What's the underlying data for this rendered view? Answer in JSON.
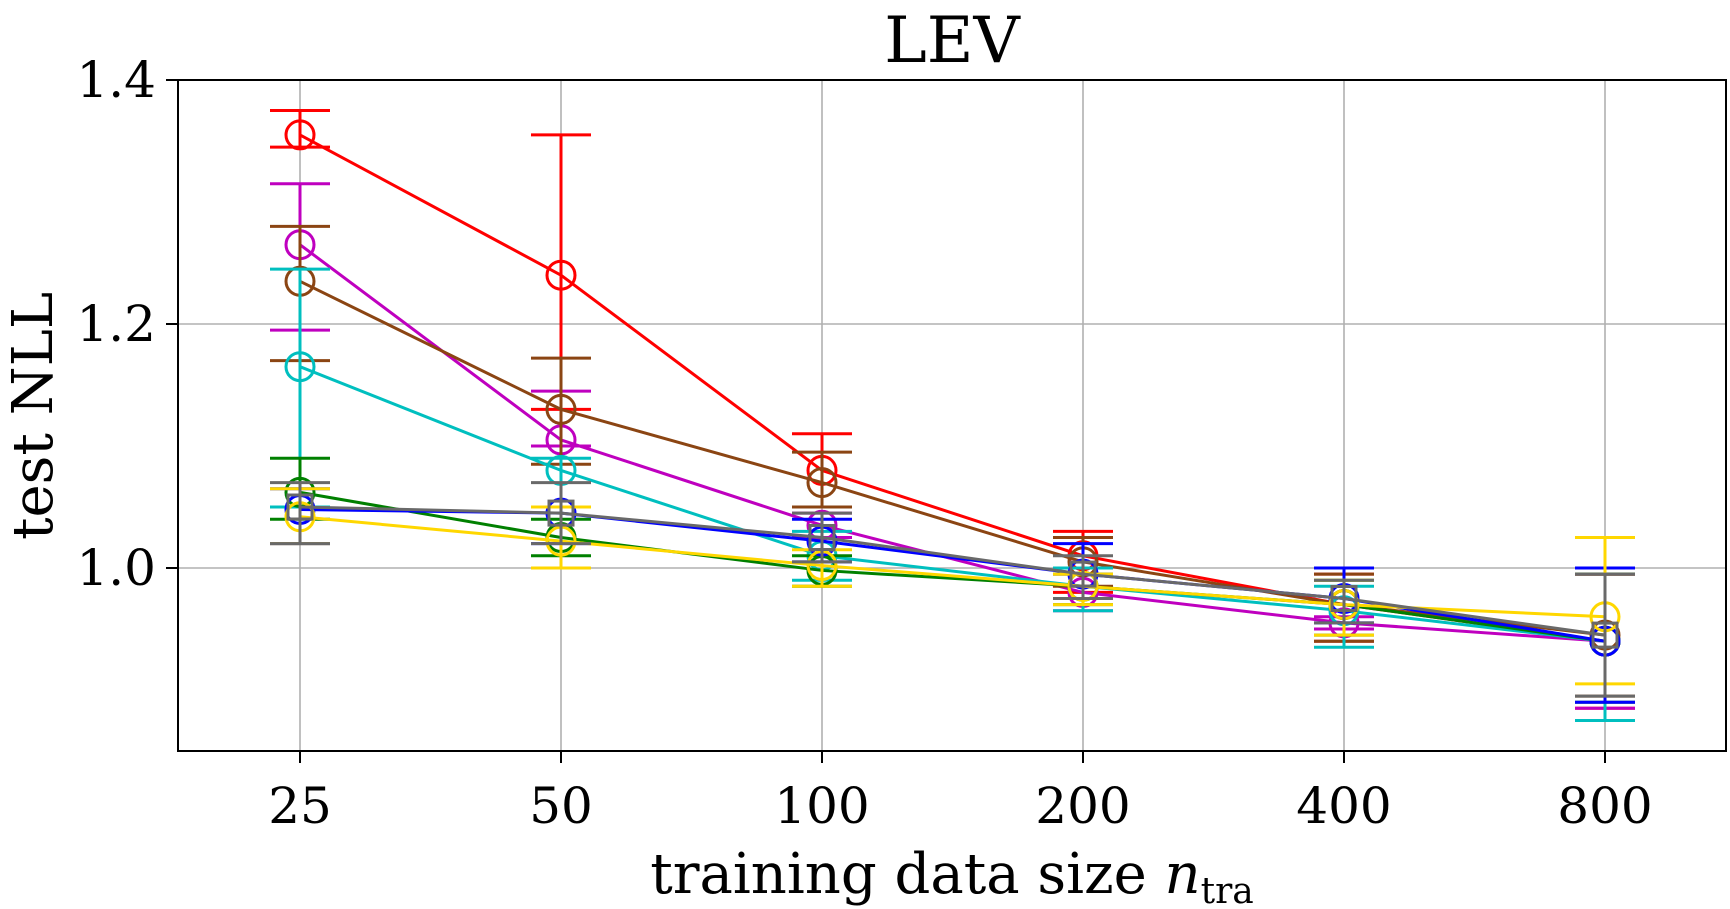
{
  "chart_data": {
    "type": "line",
    "title": "LEV",
    "xlabel": "training data size",
    "xlabel_var": "n",
    "xlabel_sub": "tra",
    "ylabel": "test NLL",
    "x": [
      25,
      50,
      100,
      200,
      400,
      800
    ],
    "x_tick_labels": [
      "25",
      "50",
      "100",
      "200",
      "400",
      "800"
    ],
    "y_ticks": [
      1.0,
      1.2,
      1.4
    ],
    "y_tick_labels": [
      "1.0",
      "1.2",
      "1.4"
    ],
    "ylim": [
      0.85,
      1.4
    ],
    "grid": true,
    "series": [
      {
        "name": "red",
        "color": "#ff0000",
        "marker": "circle",
        "values": [
          1.355,
          1.24,
          1.08,
          1.01,
          0.97,
          0.94
        ],
        "err_low": [
          1.345,
          1.13,
          1.05,
          0.98,
          0.94,
          0.885
        ],
        "err_high": [
          1.375,
          1.355,
          1.11,
          1.03,
          0.995,
          0.995
        ]
      },
      {
        "name": "magenta",
        "color": "#bf00bf",
        "marker": "circle",
        "values": [
          1.265,
          1.105,
          1.035,
          0.98,
          0.955,
          0.94
        ],
        "err_low": [
          1.195,
          1.1,
          1.025,
          0.965,
          0.95,
          0.885
        ],
        "err_high": [
          1.315,
          1.145,
          1.045,
          0.995,
          0.96,
          0.995
        ]
      },
      {
        "name": "brown",
        "color": "#8b4513",
        "marker": "circle",
        "values": [
          1.235,
          1.13,
          1.07,
          1.005,
          0.97,
          0.945
        ],
        "err_low": [
          1.17,
          1.085,
          1.05,
          0.985,
          0.94,
          0.895
        ],
        "err_high": [
          1.28,
          1.172,
          1.095,
          1.025,
          0.995,
          0.995
        ]
      },
      {
        "name": "cyan",
        "color": "#00bfbf",
        "marker": "circle",
        "values": [
          1.165,
          1.08,
          1.01,
          0.985,
          0.965,
          0.94
        ],
        "err_low": [
          1.05,
          1.05,
          0.99,
          0.965,
          0.935,
          0.875
        ],
        "err_high": [
          1.245,
          1.09,
          1.03,
          1.0,
          0.985,
          1.0
        ]
      },
      {
        "name": "green",
        "color": "#008000",
        "marker": "circle",
        "values": [
          1.062,
          1.025,
          0.998,
          0.985,
          0.97,
          0.94
        ],
        "err_low": [
          1.04,
          1.01,
          0.985,
          0.97,
          0.945,
          0.89
        ],
        "err_high": [
          1.09,
          1.04,
          1.01,
          0.995,
          0.99,
          0.995
        ]
      },
      {
        "name": "blue",
        "color": "#0000ff",
        "marker": "circle",
        "values": [
          1.048,
          1.045,
          1.022,
          0.995,
          0.975,
          0.94
        ],
        "err_low": [
          1.02,
          1.02,
          1.005,
          0.975,
          0.955,
          0.89
        ],
        "err_high": [
          1.065,
          1.05,
          1.04,
          1.02,
          1.0,
          1.0
        ]
      },
      {
        "name": "gold",
        "color": "#ffd700",
        "marker": "circle",
        "values": [
          1.042,
          1.022,
          1.002,
          0.985,
          0.97,
          0.96
        ],
        "err_low": [
          1.02,
          1.0,
          0.985,
          0.97,
          0.945,
          0.905
        ],
        "err_high": [
          1.065,
          1.05,
          1.015,
          0.995,
          0.99,
          1.025
        ]
      },
      {
        "name": "gray",
        "color": "#696969",
        "marker": "square",
        "values": [
          1.05,
          1.045,
          1.025,
          0.995,
          0.975,
          0.945
        ],
        "err_low": [
          1.02,
          1.02,
          1.005,
          0.975,
          0.955,
          0.895
        ],
        "err_high": [
          1.07,
          1.07,
          1.045,
          1.01,
          0.99,
          0.995
        ]
      }
    ]
  }
}
